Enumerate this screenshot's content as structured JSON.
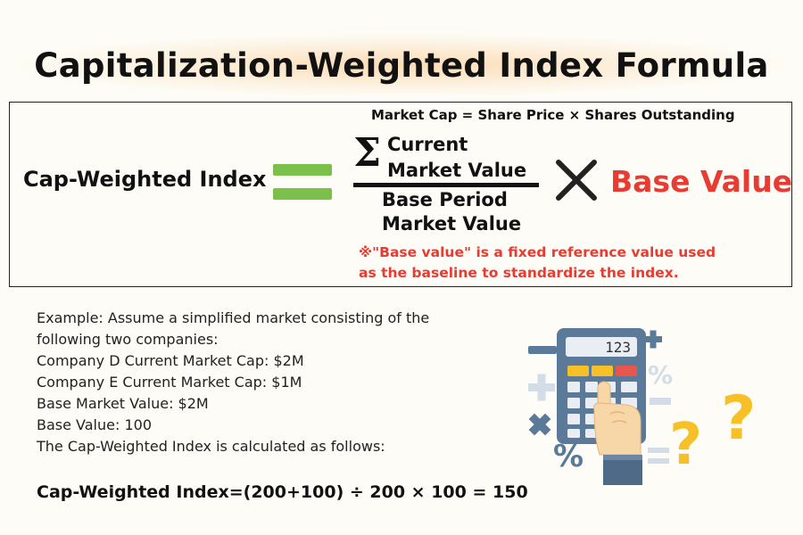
{
  "title": "Capitalization-Weighted Index Formula",
  "formula": {
    "market_cap_definition": "Market Cap = Share Price × Shares Outstanding",
    "lhs": "Cap-Weighted Index",
    "sigma": "Σ",
    "numerator": [
      "Current",
      "Market Value"
    ],
    "denominator": [
      "Base Period",
      "Market Value"
    ],
    "multiplier": "Base Value",
    "note": [
      "※\"Base value\" is a fixed reference value used",
      "as the baseline to standardize the index."
    ]
  },
  "example": {
    "lines": [
      "Example: Assume a simplified market consisting of the",
      "following two companies:",
      "Company D Current Market Cap: $2M",
      "Company E Current Market Cap: $1M",
      "Base Market Value: $2M",
      "Base Value: 100",
      "The Cap-Weighted Index is calculated as follows:"
    ],
    "result": "Cap-Weighted Index=(200+100) ÷ 200 × 100 = 150"
  },
  "illustration": {
    "calculator_display": "123",
    "percent_symbol": "%",
    "question_mark": "?"
  },
  "colors": {
    "accent_red": "#e83c33",
    "equals_green": "#7cc04c",
    "icon_blue": "#5b7a99",
    "icon_light": "#d3dde7",
    "question_yellow": "#f6c026"
  }
}
